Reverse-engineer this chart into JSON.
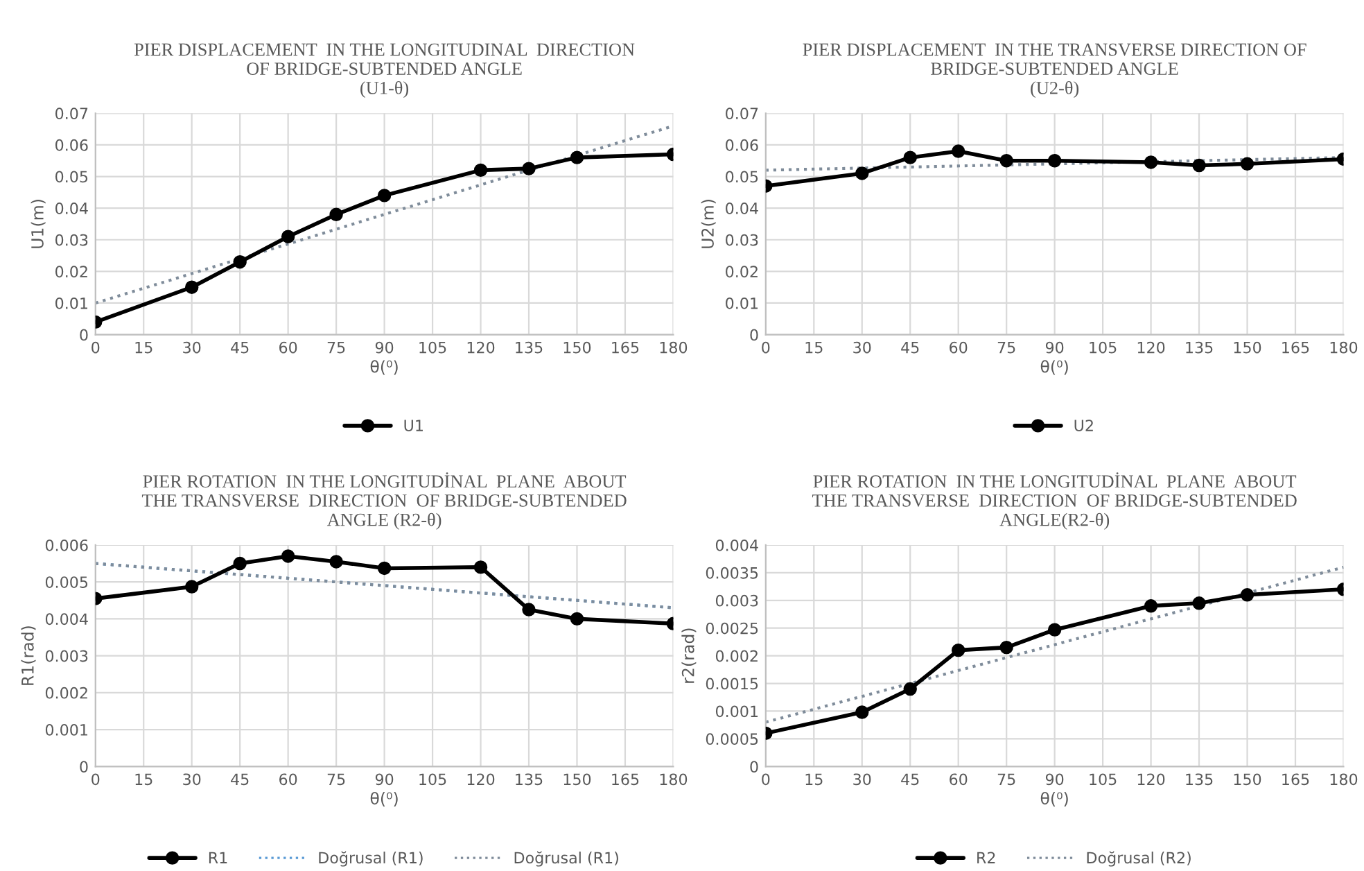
{
  "chart_data": [
    {
      "type": "line",
      "title": "PIER DISPLACEMENT  IN THE LONGITUDINAL  DIRECTION\nOF BRIDGE-SUBTENDED ANGLE\n(U1-θ)",
      "xlabel": "θ(⁰)",
      "ylabel": "U1(m)",
      "xlim": [
        0,
        180
      ],
      "xticks": [
        0,
        15,
        30,
        45,
        60,
        75,
        90,
        105,
        120,
        135,
        150,
        165,
        180
      ],
      "ylim": [
        0,
        0.07
      ],
      "yticks": [
        0,
        0.01,
        0.02,
        0.03,
        0.04,
        0.05,
        0.06,
        0.07
      ],
      "grid": true,
      "legend": "bottom",
      "series": [
        {
          "name": "U1",
          "color": "#000000",
          "marker": "circle",
          "line_style": "solid",
          "x": [
            0,
            30,
            45,
            60,
            75,
            90,
            120,
            135,
            150,
            180
          ],
          "values": [
            0.004,
            0.015,
            0.023,
            0.031,
            0.038,
            0.044,
            0.052,
            0.0525,
            0.056,
            0.057
          ]
        },
        {
          "color": "#7f8c9a",
          "marker": "none",
          "line_style": "dotted",
          "x": [
            0,
            180
          ],
          "values": [
            0.01,
            0.066
          ]
        }
      ]
    },
    {
      "type": "line",
      "title": "PIER DISPLACEMENT  IN THE TRANSVERSE DIRECTION OF\nBRIDGE-SUBTENDED ANGLE\n(U2-θ)",
      "xlabel": "θ(⁰)",
      "ylabel": "U2(m)",
      "xlim": [
        0,
        180
      ],
      "xticks": [
        0,
        15,
        30,
        45,
        60,
        75,
        90,
        105,
        120,
        135,
        150,
        165,
        180
      ],
      "ylim": [
        0,
        0.07
      ],
      "yticks": [
        0,
        0.01,
        0.02,
        0.03,
        0.04,
        0.05,
        0.06,
        0.07
      ],
      "grid": true,
      "legend": "bottom",
      "series": [
        {
          "name": "U2",
          "color": "#000000",
          "marker": "circle",
          "line_style": "solid",
          "x": [
            0,
            30,
            45,
            60,
            75,
            90,
            120,
            135,
            150,
            180
          ],
          "values": [
            0.047,
            0.051,
            0.056,
            0.058,
            0.055,
            0.055,
            0.0545,
            0.0535,
            0.054,
            0.0555
          ]
        },
        {
          "color": "#7f8c9a",
          "marker": "none",
          "line_style": "dotted",
          "x": [
            0,
            180
          ],
          "values": [
            0.052,
            0.056
          ]
        }
      ]
    },
    {
      "type": "line",
      "title": "PIER ROTATION  IN THE LONGITUDİNAL  PLANE  ABOUT\nTHE TRANSVERSE  DIRECTION  OF BRIDGE-SUBTENDED\nANGLE (R2-θ)",
      "xlabel": "θ(⁰)",
      "ylabel": "R1(rad)",
      "xlim": [
        0,
        180
      ],
      "xticks": [
        0,
        15,
        30,
        45,
        60,
        75,
        90,
        105,
        120,
        135,
        150,
        165,
        180
      ],
      "ylim": [
        0,
        0.006
      ],
      "yticks": [
        0,
        0.001,
        0.002,
        0.003,
        0.004,
        0.005,
        0.006
      ],
      "grid": true,
      "legend": "bottom",
      "series": [
        {
          "name": "R1",
          "color": "#000000",
          "marker": "circle",
          "line_style": "solid",
          "x": [
            0,
            30,
            45,
            60,
            75,
            90,
            120,
            135,
            150,
            180
          ],
          "values": [
            0.00455,
            0.00487,
            0.0055,
            0.0057,
            0.00555,
            0.00537,
            0.0054,
            0.00425,
            0.004,
            0.00387
          ]
        },
        {
          "name": "Doğrusal (R1)",
          "color": "#5b9bd5",
          "marker": "none",
          "line_style": "dotted",
          "x": [
            0,
            180
          ],
          "values": [
            0.0055,
            0.0043
          ]
        },
        {
          "name": "Doğrusal (R1)",
          "color": "#7f8c9a",
          "marker": "none",
          "line_style": "dotted",
          "x": [
            0,
            180
          ],
          "values": [
            0.0055,
            0.0043
          ]
        }
      ]
    },
    {
      "type": "line",
      "title": "PIER ROTATION  IN THE LONGITUDİNAL  PLANE  ABOUT\nTHE TRANSVERSE  DIRECTION  OF BRIDGE-SUBTENDED\nANGLE(R2-θ)",
      "xlabel": "θ(⁰)",
      "ylabel": "r2(rad)",
      "xlim": [
        0,
        180
      ],
      "xticks": [
        0,
        15,
        30,
        45,
        60,
        75,
        90,
        105,
        120,
        135,
        150,
        165,
        180
      ],
      "ylim": [
        0,
        0.004
      ],
      "yticks": [
        0,
        0.0005,
        0.001,
        0.0015,
        0.002,
        0.0025,
        0.003,
        0.0035,
        0.004
      ],
      "grid": true,
      "legend": "bottom",
      "series": [
        {
          "name": "R2",
          "color": "#000000",
          "marker": "circle",
          "line_style": "solid",
          "x": [
            0,
            30,
            45,
            60,
            75,
            90,
            120,
            135,
            150,
            180
          ],
          "values": [
            0.0006,
            0.00098,
            0.0014,
            0.0021,
            0.00215,
            0.00247,
            0.0029,
            0.00295,
            0.0031,
            0.0032
          ]
        },
        {
          "name": "Doğrusal (R2)",
          "color": "#7f8c9a",
          "marker": "none",
          "line_style": "dotted",
          "x": [
            0,
            180
          ],
          "values": [
            0.0008,
            0.0036
          ]
        }
      ]
    }
  ]
}
